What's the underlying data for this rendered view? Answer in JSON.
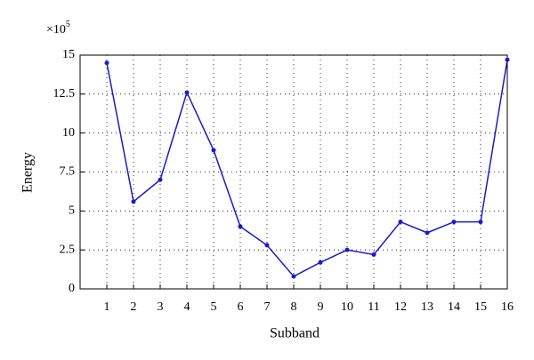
{
  "chart_data": {
    "type": "line",
    "x_label": "Subband",
    "y_label": "Energy",
    "y_multiplier": {
      "base": "×10",
      "exponent": "5"
    },
    "x": [
      1,
      2,
      3,
      4,
      5,
      6,
      7,
      8,
      9,
      10,
      11,
      12,
      13,
      14,
      15,
      16
    ],
    "series": [
      {
        "name": "Energy",
        "color": "#1a1acc",
        "values": [
          14.5,
          5.6,
          7.0,
          12.6,
          8.9,
          4.0,
          2.8,
          0.8,
          1.7,
          2.5,
          2.2,
          4.3,
          3.6,
          4.3,
          4.3,
          14.7
        ]
      }
    ],
    "xlim": [
      0,
      16
    ],
    "xticks": [
      1,
      2,
      3,
      4,
      5,
      6,
      7,
      8,
      9,
      10,
      11,
      12,
      13,
      14,
      15,
      16
    ],
    "ylim": [
      0,
      15
    ],
    "yticks": [
      0,
      2.5,
      5,
      7.5,
      10,
      12.5,
      15
    ],
    "grid": true
  }
}
